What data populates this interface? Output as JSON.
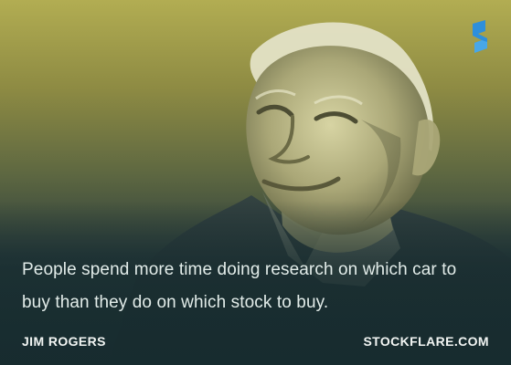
{
  "card": {
    "quote": "People spend more time doing research on which car to buy than they do on which stock to buy.",
    "author": "JIM ROGERS",
    "website": "STOCKFLARE.COM",
    "logo_icon": "stockflare-logo-icon",
    "photo": "portrait-photo",
    "colors": {
      "top_tint": "#b2ad52",
      "bottom_tint": "#1d3034",
      "logo_blue": "#2e8fdb",
      "text": "#e2ece9"
    }
  }
}
